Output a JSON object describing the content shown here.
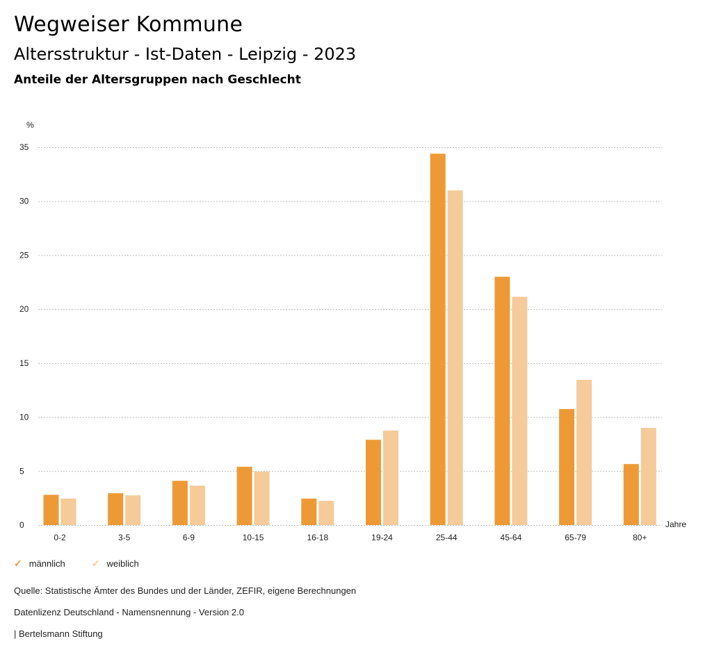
{
  "header": {
    "title": "Wegweiser Kommune",
    "subtitle": "Altersstruktur - Ist-Daten - Leipzig - 2023",
    "chart_title": "Anteile der Altersgruppen nach Geschlecht"
  },
  "colors": {
    "maennlich": "#ED9A36",
    "weiblich": "#F4CB99",
    "grid": "#bbbbbb"
  },
  "chart_data": {
    "type": "bar",
    "title": "Anteile der Altersgruppen nach Geschlecht",
    "xlabel": "Jahre",
    "ylabel": "%",
    "ylim": [
      0,
      35
    ],
    "yticks": [
      0,
      5,
      10,
      15,
      20,
      25,
      30,
      35
    ],
    "grid": true,
    "legend_position": "bottom-left",
    "categories": [
      "0-2",
      "3-5",
      "6-9",
      "10-15",
      "16-18",
      "19-24",
      "25-44",
      "45-64",
      "65-79",
      "80+"
    ],
    "series": [
      {
        "name": "männlich",
        "values": [
          2.8,
          2.95,
          4.1,
          5.4,
          2.45,
          7.9,
          34.4,
          23.0,
          10.75,
          5.65
        ]
      },
      {
        "name": "weiblich",
        "values": [
          2.45,
          2.75,
          3.65,
          4.95,
          2.25,
          8.75,
          31.0,
          21.15,
          13.45,
          9.0
        ]
      }
    ]
  },
  "legend": {
    "items": [
      {
        "label": "männlich",
        "icon": "check-icon"
      },
      {
        "label": "weiblich",
        "icon": "check-icon"
      }
    ]
  },
  "footer": {
    "source": "Quelle: Statistische Ämter des Bundes und der Länder, ZEFIR, eigene Berechnungen",
    "license": "Datenlizenz Deutschland - Namensnennung - Version 2.0",
    "publisher": "| Bertelsmann Stiftung"
  }
}
